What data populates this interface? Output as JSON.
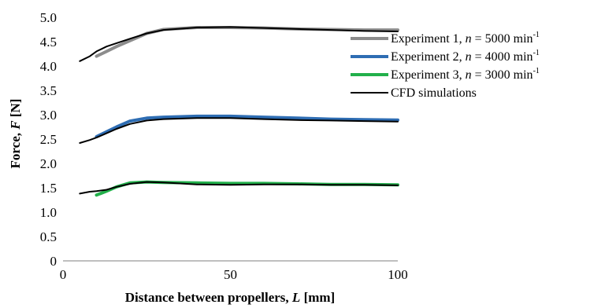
{
  "chart_data": {
    "type": "line",
    "title": "",
    "xlabel_prefix": "Distance between propellers, ",
    "xlabel_var": "L",
    "xlabel_unit": " [mm]",
    "ylabel_prefix": "Force, ",
    "ylabel_var": "F",
    "ylabel_unit": " [N]",
    "xlim": [
      0,
      100
    ],
    "ylim": [
      0,
      5.0
    ],
    "xticks": [
      "0",
      "50",
      "100"
    ],
    "xtick_values": [
      0,
      50,
      100
    ],
    "yticks": [
      "0",
      "0.5",
      "1.0",
      "1.5",
      "2.0",
      "2.5",
      "3.0",
      "3.5",
      "4.0",
      "4.5",
      "5.0"
    ],
    "ytick_values": [
      0,
      0.5,
      1.0,
      1.5,
      2.0,
      2.5,
      3.0,
      3.5,
      4.0,
      4.5,
      5.0
    ],
    "grid": false,
    "legend_position": "right",
    "series": [
      {
        "name": "Experiment 1, n = 5000 min-1",
        "legend": {
          "pre": "Experiment 1, ",
          "var": "n",
          "mid": " = 5000 min",
          "sup": "-1"
        },
        "color": "#8c8c8c",
        "width": 4,
        "x": [
          10,
          13,
          16,
          20,
          25,
          30,
          40,
          50,
          60,
          70,
          80,
          90,
          100
        ],
        "y": [
          4.2,
          4.3,
          4.4,
          4.52,
          4.67,
          4.75,
          4.79,
          4.79,
          4.78,
          4.76,
          4.75,
          4.74,
          4.74
        ]
      },
      {
        "name": "CFD simulations (Experiment 1)",
        "color": "#000000",
        "width": 2,
        "x": [
          5,
          8,
          10,
          13,
          16,
          20,
          25,
          30,
          40,
          50,
          60,
          70,
          80,
          90,
          100
        ],
        "y": [
          4.1,
          4.2,
          4.3,
          4.4,
          4.47,
          4.56,
          4.67,
          4.74,
          4.79,
          4.8,
          4.78,
          4.76,
          4.74,
          4.72,
          4.71
        ]
      },
      {
        "name": "Experiment 2, n = 4000 min-1",
        "legend": {
          "pre": "Experiment 2, ",
          "var": "n",
          "mid": " = 4000 min",
          "sup": "-1"
        },
        "color": "#2e6db3",
        "width": 4,
        "x": [
          10,
          13,
          16,
          20,
          25,
          30,
          40,
          50,
          60,
          70,
          80,
          90,
          100
        ],
        "y": [
          2.55,
          2.65,
          2.75,
          2.87,
          2.93,
          2.95,
          2.97,
          2.97,
          2.95,
          2.93,
          2.91,
          2.9,
          2.89
        ]
      },
      {
        "name": "CFD simulations (Experiment 2)",
        "color": "#000000",
        "width": 2,
        "x": [
          5,
          8,
          10,
          13,
          16,
          20,
          25,
          30,
          40,
          50,
          60,
          70,
          80,
          90,
          100
        ],
        "y": [
          2.42,
          2.48,
          2.53,
          2.62,
          2.71,
          2.81,
          2.88,
          2.91,
          2.93,
          2.93,
          2.91,
          2.89,
          2.88,
          2.87,
          2.86
        ]
      },
      {
        "name": "Experiment 3, n = 3000 min-1",
        "legend": {
          "pre": "Experiment 3, ",
          "var": "n",
          "mid": " = 3000 min",
          "sup": "-1"
        },
        "color": "#22b04b",
        "width": 4,
        "x": [
          10,
          13,
          16,
          20,
          25,
          30,
          40,
          50,
          60,
          70,
          80,
          90,
          100
        ],
        "y": [
          1.35,
          1.43,
          1.52,
          1.6,
          1.62,
          1.61,
          1.6,
          1.59,
          1.59,
          1.58,
          1.57,
          1.57,
          1.56
        ]
      },
      {
        "name": "CFD simulations",
        "legend": {
          "pre": "CFD simulations",
          "var": "",
          "mid": "",
          "sup": ""
        },
        "color": "#000000",
        "width": 2,
        "x": [
          5,
          8,
          10,
          13,
          16,
          20,
          25,
          30,
          40,
          50,
          60,
          70,
          80,
          90,
          100
        ],
        "y": [
          1.38,
          1.42,
          1.43,
          1.46,
          1.52,
          1.58,
          1.62,
          1.61,
          1.57,
          1.56,
          1.57,
          1.57,
          1.56,
          1.56,
          1.55
        ]
      }
    ]
  }
}
